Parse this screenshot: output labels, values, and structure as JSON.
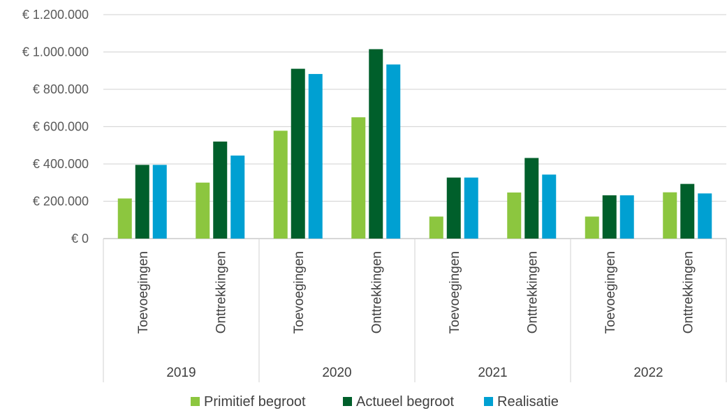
{
  "chart_data": {
    "type": "bar",
    "groups": [
      {
        "label": "2019",
        "categories": [
          "Toevoegingen",
          "Onttrekkingen"
        ]
      },
      {
        "label": "2020",
        "categories": [
          "Toevoegingen",
          "Onttrekkingen"
        ]
      },
      {
        "label": "2021",
        "categories": [
          "Toevoegingen",
          "Onttrekkingen"
        ]
      },
      {
        "label": "2022",
        "categories": [
          "Toevoegingen",
          "Onttrekkingen"
        ]
      }
    ],
    "series": [
      {
        "name": "Primitief begroot",
        "color": "#8cc63f",
        "values": [
          215000,
          300000,
          578000,
          650000,
          118000,
          247000,
          118000,
          248000
        ]
      },
      {
        "name": "Actueel begroot",
        "color": "#005f2b",
        "values": [
          395000,
          520000,
          910000,
          1015000,
          327000,
          432000,
          232000,
          293000
        ]
      },
      {
        "name": "Realisatie",
        "color": "#00a0d2",
        "values": [
          395000,
          445000,
          882000,
          933000,
          327000,
          343000,
          232000,
          242000
        ]
      }
    ],
    "yticks": [
      "€ 0",
      "€ 200.000",
      "€ 400.000",
      "€ 600.000",
      "€ 800.000",
      "€ 1.000.000",
      "€ 1.200.000"
    ],
    "ylim": [
      0,
      1200000
    ],
    "grid": true,
    "legend_position": "bottom",
    "title": "",
    "xlabel": "",
    "ylabel": ""
  }
}
